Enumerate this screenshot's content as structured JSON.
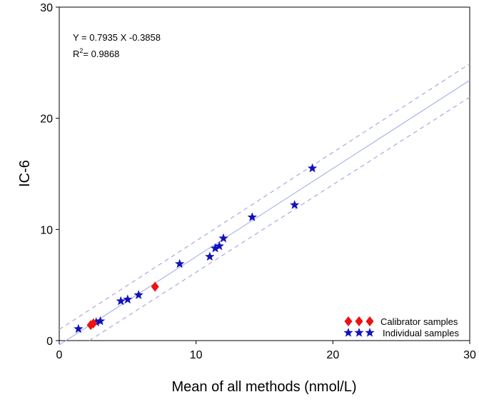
{
  "chart_data": {
    "type": "scatter",
    "xlabel": "Mean of all methods (nmol/L)",
    "ylabel": "IC-6",
    "xlim": [
      0,
      30
    ],
    "ylim": [
      0,
      30
    ],
    "xticks": [
      0,
      10,
      20,
      30
    ],
    "yticks": [
      0,
      10,
      20,
      30
    ],
    "grid": false,
    "legend_position": "bottom-right",
    "equation_text": "Y = 0.7935 X -0.3858",
    "r2_prefix": "R",
    "r2_sup": "2",
    "r2_value": "= 0.9868",
    "fit_line": {
      "slope": 0.7935,
      "intercept": -0.3858,
      "x_range": [
        0,
        30
      ],
      "color": "#9aa7ee"
    },
    "band_lines": [
      {
        "points": [
          [
            0,
            1.0
          ],
          [
            30,
            24.9
          ]
        ],
        "color": "#a8a8e0"
      },
      {
        "points": [
          [
            2.2,
            0
          ],
          [
            30,
            21.9
          ]
        ],
        "color": "#a8a8e0"
      }
    ],
    "series": [
      {
        "name": "Calibrator samples",
        "marker": "diamond",
        "color": "#ee1111",
        "points": [
          [
            2.3,
            1.4
          ],
          [
            2.5,
            1.55
          ],
          [
            7.0,
            4.85
          ]
        ]
      },
      {
        "name": "Individual samples",
        "marker": "star",
        "color": "#1111bb",
        "points": [
          [
            1.4,
            1.05
          ],
          [
            2.7,
            1.65
          ],
          [
            3.0,
            1.75
          ],
          [
            4.5,
            3.55
          ],
          [
            5.0,
            3.7
          ],
          [
            5.8,
            4.1
          ],
          [
            8.8,
            6.9
          ],
          [
            11.0,
            7.55
          ],
          [
            11.4,
            8.3
          ],
          [
            11.7,
            8.5
          ],
          [
            12.0,
            9.2
          ],
          [
            14.1,
            11.1
          ],
          [
            17.2,
            12.2
          ],
          [
            18.5,
            15.5
          ]
        ]
      }
    ]
  }
}
